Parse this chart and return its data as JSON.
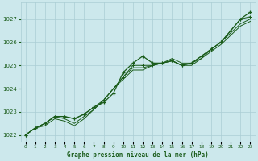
{
  "bg_color": "#cce8ec",
  "grid_color": "#aacdd4",
  "line_color": "#1a5c1a",
  "marker_color": "#1a5c1a",
  "title": "Graphe pression niveau de la mer (hPa)",
  "title_color": "#1a5c1a",
  "xlabel_ticks": [
    0,
    1,
    2,
    3,
    4,
    5,
    6,
    7,
    8,
    9,
    10,
    11,
    12,
    13,
    14,
    15,
    16,
    17,
    18,
    19,
    20,
    21,
    22,
    23
  ],
  "ylim": [
    1021.7,
    1027.7
  ],
  "yticks": [
    1022,
    1023,
    1024,
    1025,
    1026,
    1027
  ],
  "series1": [
    1022.0,
    1022.3,
    1022.5,
    1022.8,
    1022.8,
    1022.7,
    1022.9,
    1023.2,
    1023.4,
    1023.8,
    1024.7,
    1025.1,
    1025.4,
    1025.1,
    1025.1,
    1025.2,
    1025.0,
    1025.1,
    1025.4,
    1025.7,
    1026.0,
    1026.5,
    1027.0,
    1027.3
  ],
  "series2": [
    1022.0,
    1022.3,
    1022.5,
    1022.8,
    1022.8,
    1022.7,
    1022.9,
    1023.2,
    1023.5,
    1024.0,
    1024.5,
    1025.0,
    1025.0,
    1025.0,
    1025.1,
    1025.2,
    1025.0,
    1025.1,
    1025.4,
    1025.7,
    1026.0,
    1026.5,
    1027.0,
    1027.1
  ],
  "series3": [
    1022.0,
    1022.3,
    1022.5,
    1022.8,
    1022.7,
    1022.5,
    1022.8,
    1023.1,
    1023.5,
    1024.0,
    1024.5,
    1024.9,
    1024.9,
    1025.0,
    1025.1,
    1025.3,
    1025.1,
    1025.1,
    1025.3,
    1025.7,
    1026.0,
    1026.4,
    1026.8,
    1027.0
  ],
  "series4": [
    1022.0,
    1022.3,
    1022.4,
    1022.7,
    1022.6,
    1022.4,
    1022.7,
    1023.1,
    1023.5,
    1024.0,
    1024.4,
    1024.8,
    1024.8,
    1025.0,
    1025.1,
    1025.2,
    1025.0,
    1025.0,
    1025.3,
    1025.6,
    1025.9,
    1026.3,
    1026.7,
    1026.9
  ]
}
